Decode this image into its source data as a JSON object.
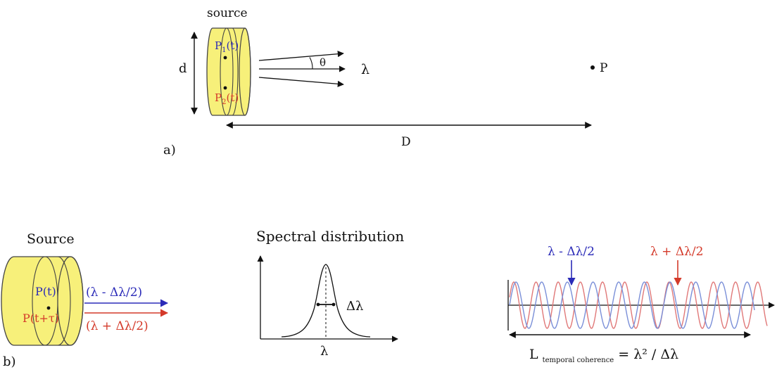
{
  "panel_a": {
    "source_label": "source",
    "d_label": "d",
    "p1": {
      "base": "P",
      "sub": "1",
      "suffix": "(t)"
    },
    "p2": {
      "base": "P",
      "sub": "2",
      "suffix": "(t)"
    },
    "theta_label": "θ",
    "lambda_label": "λ",
    "point_label": "P",
    "D_label": "D",
    "panel_label": "a)"
  },
  "panel_b": {
    "source_label": "Source",
    "point_blue": "P(t)",
    "point_red": "P(t+τ)",
    "beam_blue_label": "(λ - Δλ/2)",
    "beam_red_label": "(λ + Δλ/2)",
    "panel_label": "b)",
    "spectrum_title": "Spectral distribution",
    "spectrum_delta_label": "Δλ",
    "spectrum_x_label": "λ",
    "wave_blue_label": "λ - Δλ/2",
    "wave_red_label": "λ + Δλ/2",
    "coherence": {
      "base": "L",
      "sub": "temporal coherence",
      "formula": "= λ² / Δλ"
    }
  },
  "colors": {
    "cylinder_fill": "#f7f07a",
    "cylinder_stroke": "#444444",
    "blue": "#2b2bb8",
    "red": "#d43a2a",
    "wave_blue": "#7a8fd8",
    "wave_red": "#e07878"
  }
}
